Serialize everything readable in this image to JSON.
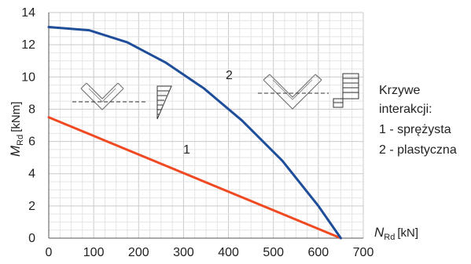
{
  "chart_data": {
    "type": "line",
    "x_axis": {
      "label_main": "N",
      "label_sub": "Rd",
      "unit": "[kN]",
      "ticks": [
        0,
        100,
        200,
        300,
        400,
        500,
        600,
        700
      ],
      "range": [
        0,
        700
      ]
    },
    "y_axis": {
      "label_main": "M",
      "label_sub": "Rd",
      "unit": "[kNm]",
      "ticks": [
        0,
        2,
        4,
        6,
        8,
        10,
        12,
        14
      ],
      "range": [
        0,
        14
      ]
    },
    "grid": true,
    "series": [
      {
        "label": "1",
        "color": "#f04a23",
        "x": [
          0,
          650
        ],
        "y": [
          7.5,
          0
        ]
      },
      {
        "label": "2",
        "color": "#1e4d99",
        "x": [
          0,
          90,
          175,
          260,
          345,
          430,
          520,
          600,
          650
        ],
        "y": [
          13.1,
          12.9,
          12.15,
          10.9,
          9.3,
          7.3,
          4.8,
          2.0,
          0
        ]
      }
    ],
    "legend": {
      "title_line1": "Krzywe",
      "title_line2": "interakcji:",
      "item1": "1 - sprężysta",
      "item2": "2 - plastyczna"
    },
    "insets": [
      "elastic-stress-distribution",
      "plastic-stress-distribution"
    ]
  }
}
